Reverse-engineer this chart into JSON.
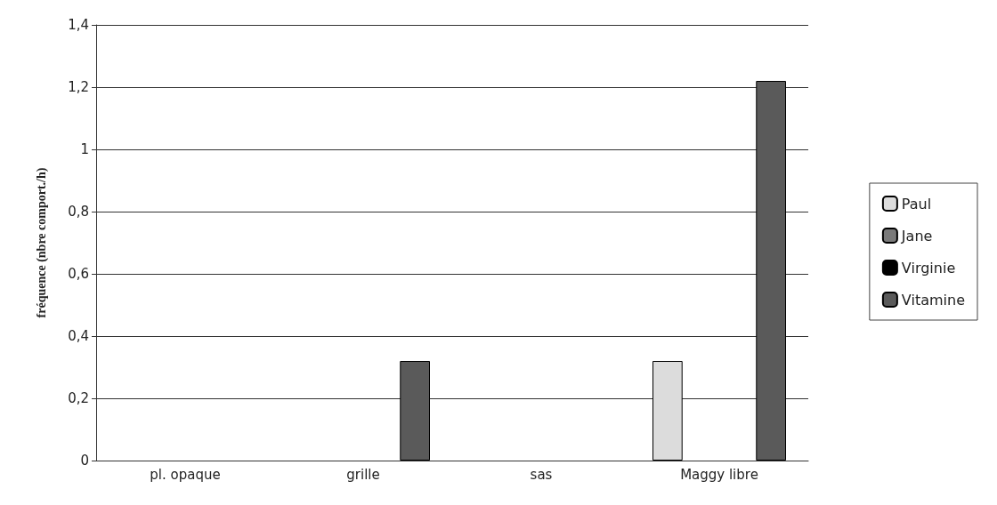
{
  "chart_data": {
    "type": "bar",
    "ylabel": "fréquence (nbre comport./h)",
    "categories": [
      "pl. opaque",
      "grille",
      "sas",
      "Maggy libre"
    ],
    "series": [
      {
        "name": "Paul",
        "color": "#dcdcdc",
        "values": [
          0,
          0,
          0,
          0.32
        ]
      },
      {
        "name": "Jane",
        "color": "#7a7a7a",
        "values": [
          0,
          0,
          0,
          0
        ]
      },
      {
        "name": "Virginie",
        "color": "#000000",
        "values": [
          0,
          0,
          0,
          0
        ]
      },
      {
        "name": "Vitamine",
        "color": "#5a5a5a",
        "values": [
          0,
          0.32,
          0,
          1.22
        ]
      }
    ],
    "ylim": [
      0,
      1.4
    ],
    "yticks": [
      0,
      {
        "value": 0.2,
        "label": "0,2"
      },
      {
        "value": 0.4,
        "label": "0,4"
      },
      {
        "value": 0.6,
        "label": "0,6"
      },
      {
        "value": 0.8,
        "label": "0,8"
      },
      1,
      {
        "value": 1.2,
        "label": "1,2"
      },
      {
        "value": 1.4,
        "label": "1,4"
      }
    ],
    "grid": "y",
    "legend": "right"
  }
}
